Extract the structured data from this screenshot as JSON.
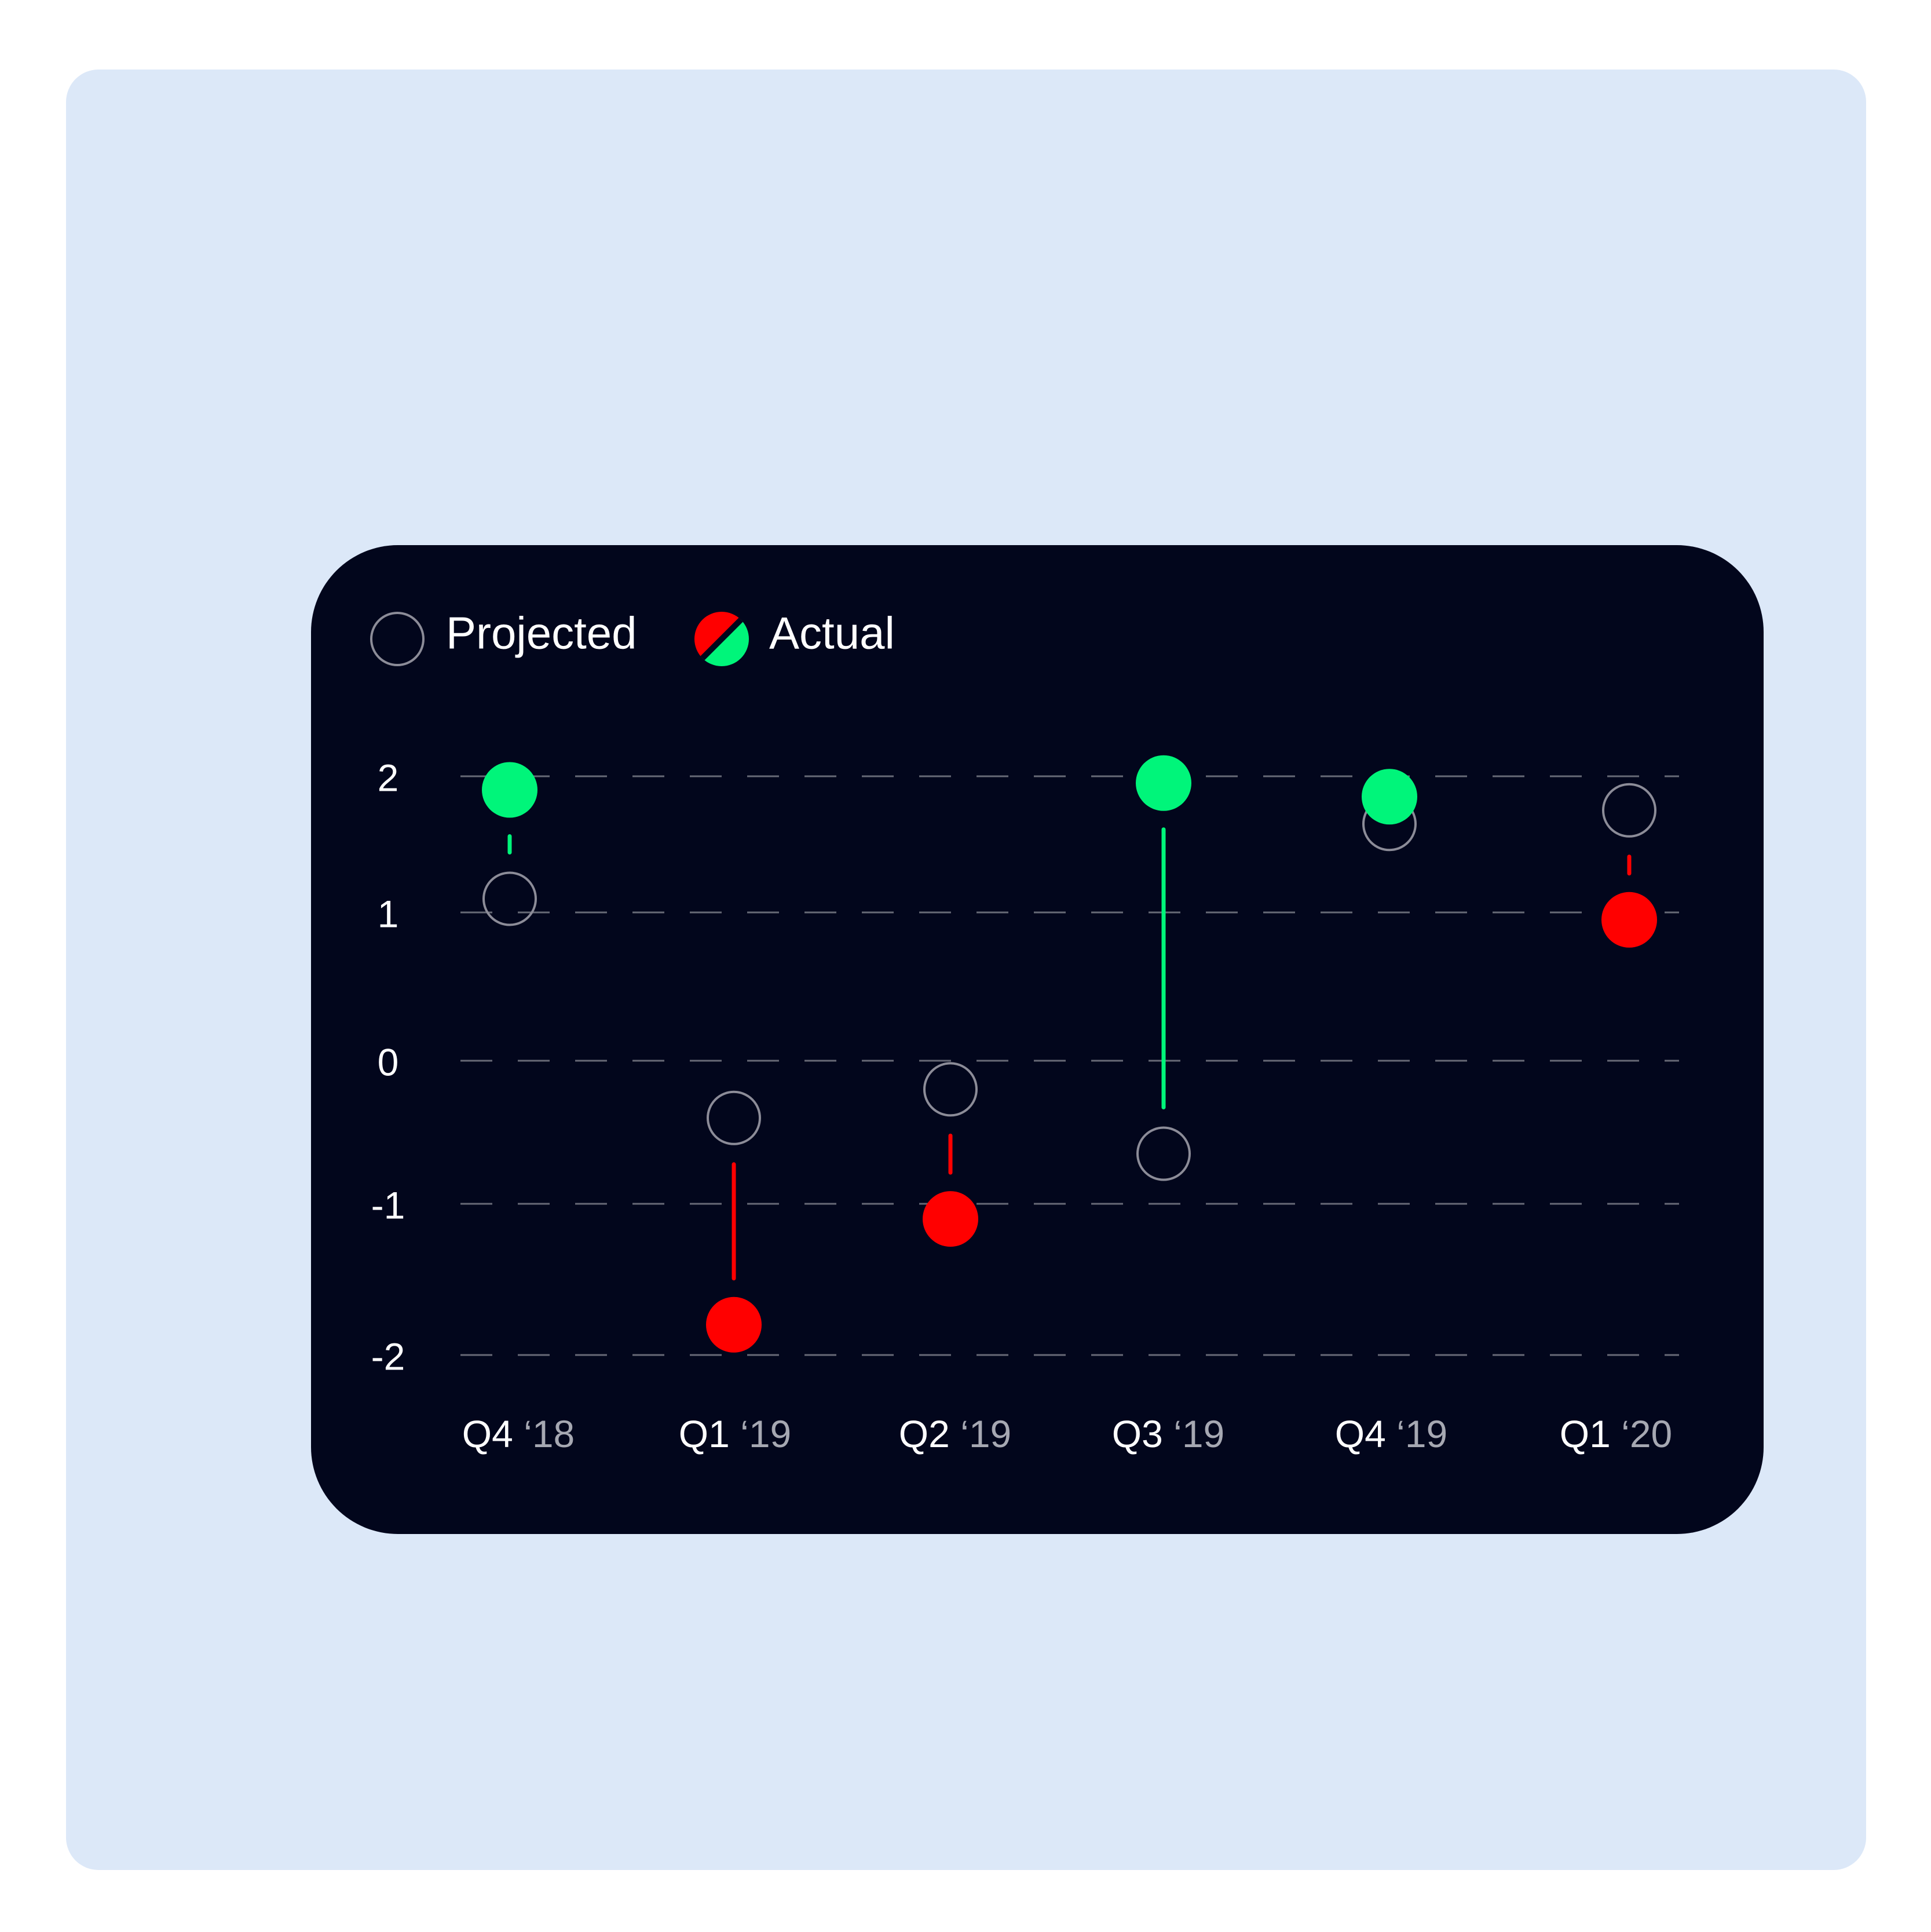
{
  "legend": {
    "projected_label": "Projected",
    "actual_label": "Actual"
  },
  "colors": {
    "page_background": "#ffffff",
    "outer_panel": "#dce8f8",
    "card_background": "#02061c",
    "positive": "#00f57a",
    "negative": "#ff0000",
    "projected_stroke": "#8c8c98",
    "grid": "#676976",
    "text_primary": "#ffffff",
    "text_secondary": "#a6a8b2"
  },
  "icons": {
    "projected": "hollow-circle-icon",
    "actual": "split-red-green-circle-icon"
  },
  "chart_data": {
    "type": "scatter",
    "subtype": "projected-vs-actual-dot-plot",
    "categories": [
      {
        "quarter": "Q4",
        "year": "‘18"
      },
      {
        "quarter": "Q1",
        "year": "‘19"
      },
      {
        "quarter": "Q2",
        "year": "‘19"
      },
      {
        "quarter": "Q3",
        "year": "‘19"
      },
      {
        "quarter": "Q4",
        "year": "‘19"
      },
      {
        "quarter": "Q1",
        "year": "‘20"
      }
    ],
    "series": [
      {
        "name": "Projected",
        "values": [
          1.1,
          -0.4,
          -0.2,
          -0.65,
          1.65,
          1.75
        ]
      },
      {
        "name": "Actual",
        "values": [
          1.9,
          -1.8,
          -1.1,
          1.95,
          1.85,
          0.95
        ]
      }
    ],
    "y_ticks": [
      "2",
      "1",
      "0",
      "-1",
      "-2"
    ],
    "y_tick_values": [
      2,
      1,
      0,
      -1,
      -2
    ],
    "ylim": [
      -2,
      2
    ],
    "grid": "horizontal-dashed",
    "legend_position": "top-left",
    "title": "",
    "xlabel": "",
    "ylabel": ""
  }
}
